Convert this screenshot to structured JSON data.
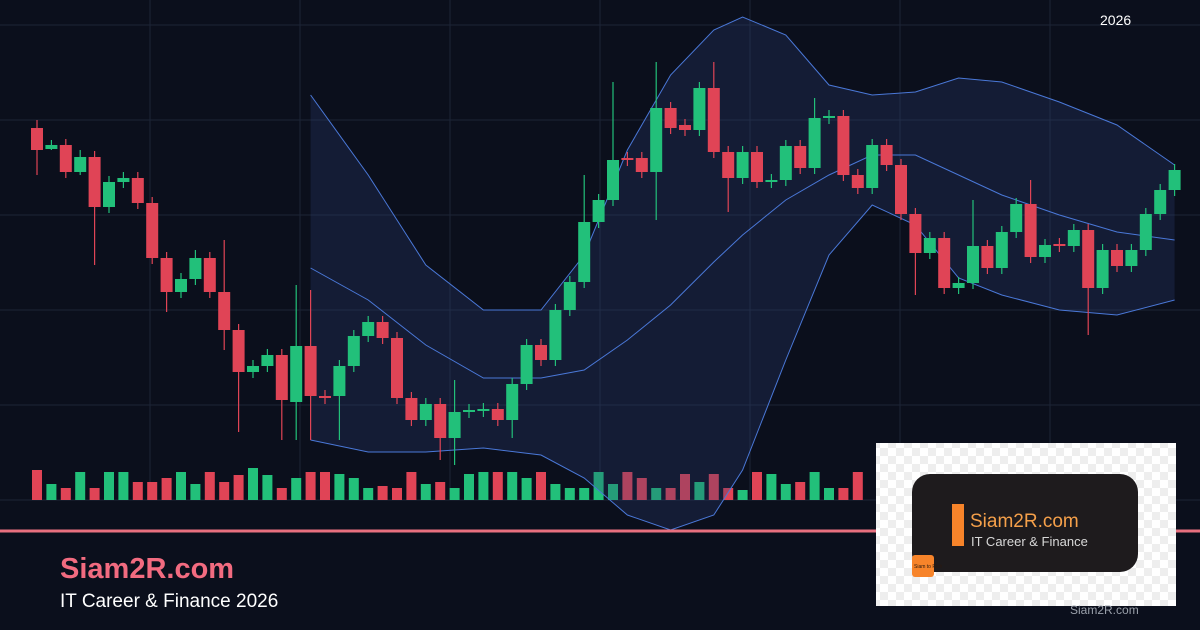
{
  "header": {
    "year": "2026"
  },
  "brand": {
    "title": "Siam2R.com",
    "subtitle": "IT Career & Finance 2026"
  },
  "logo": {
    "title": "Siam2R.com",
    "subtitle": "IT Career & Finance",
    "icon": "Siam to Rich"
  },
  "watermark": "Siam2R.com",
  "chart_data": {
    "type": "candlestick",
    "open": [
      372,
      351,
      355,
      328,
      343,
      293,
      318,
      322,
      297,
      242,
      208,
      221,
      242,
      208,
      170,
      128,
      134,
      145,
      98,
      154,
      104,
      104,
      134,
      164,
      178,
      162,
      102,
      80,
      96,
      62,
      88,
      89,
      91,
      80,
      116,
      155,
      140,
      190,
      218,
      278,
      300,
      342,
      342,
      328,
      392,
      375,
      370,
      412,
      348,
      322,
      348,
      318,
      320,
      354,
      332,
      382,
      384,
      325,
      312,
      355,
      335,
      286,
      247,
      262,
      212,
      217,
      254,
      232,
      268,
      296,
      243,
      256,
      254,
      270,
      212,
      250,
      234,
      250,
      286,
      310
    ],
    "high": [
      380,
      360,
      361,
      350,
      349,
      324,
      328,
      328,
      303,
      248,
      227,
      250,
      248,
      260,
      176,
      140,
      151,
      151,
      215,
      210,
      110,
      140,
      170,
      184,
      184,
      168,
      108,
      102,
      102,
      120,
      96,
      97,
      97,
      122,
      161,
      161,
      196,
      224,
      325,
      306,
      418,
      348,
      348,
      438,
      398,
      381,
      418,
      438,
      354,
      354,
      354,
      326,
      360,
      360,
      402,
      390,
      390,
      331,
      361,
      361,
      341,
      292,
      268,
      268,
      223,
      300,
      260,
      274,
      302,
      320,
      261,
      262,
      276,
      276,
      256,
      256,
      256,
      292,
      316,
      336
    ],
    "low": [
      325,
      350,
      322,
      325,
      235,
      287,
      312,
      291,
      236,
      188,
      202,
      215,
      202,
      150,
      68,
      122,
      128,
      60,
      60,
      60,
      96,
      60,
      128,
      158,
      156,
      96,
      74,
      74,
      40,
      35,
      82,
      83,
      74,
      62,
      110,
      134,
      134,
      184,
      212,
      272,
      294,
      334,
      322,
      280,
      366,
      364,
      364,
      342,
      288,
      316,
      312,
      312,
      314,
      326,
      326,
      376,
      319,
      306,
      306,
      329,
      280,
      205,
      241,
      206,
      206,
      211,
      226,
      226,
      262,
      237,
      237,
      248,
      248,
      165,
      206,
      228,
      228,
      244,
      280,
      304
    ],
    "close": [
      350,
      355,
      328,
      343,
      293,
      318,
      322,
      297,
      242,
      208,
      221,
      242,
      208,
      170,
      128,
      134,
      145,
      100,
      154,
      104,
      102,
      134,
      164,
      178,
      162,
      102,
      80,
      96,
      62,
      88,
      90,
      91,
      80,
      116,
      155,
      140,
      190,
      218,
      278,
      300,
      340,
      340,
      328,
      392,
      372,
      370,
      412,
      348,
      322,
      348,
      318,
      320,
      354,
      332,
      382,
      384,
      325,
      312,
      355,
      335,
      286,
      247,
      262,
      212,
      217,
      254,
      232,
      268,
      296,
      243,
      255,
      254,
      270,
      212,
      250,
      234,
      250,
      286,
      310,
      330
    ],
    "volume": [
      30,
      16,
      12,
      28,
      12,
      28,
      28,
      18,
      18,
      22,
      28,
      16,
      28,
      18,
      25,
      32,
      25,
      12,
      22,
      28,
      28,
      26,
      22,
      12,
      14,
      12,
      28,
      16,
      18,
      12,
      26,
      28,
      28,
      28,
      22,
      28,
      16,
      12,
      12,
      28,
      16,
      28,
      22,
      12,
      12,
      26,
      18,
      26,
      12,
      10,
      28,
      26,
      16,
      18,
      28,
      12,
      12,
      28,
      null,
      null,
      null,
      null,
      null,
      null,
      null,
      null,
      null,
      null,
      null,
      null,
      null,
      null,
      null,
      null,
      null,
      null,
      null,
      null,
      null,
      null
    ],
    "ylim": [
      -130,
      500
    ],
    "volume_lim": [
      0,
      50
    ],
    "up_color": "#22c07a",
    "down_color": "#e04456",
    "bands": {
      "color": "#4a78d8",
      "x": [
        19,
        23,
        27,
        31,
        35,
        38,
        41,
        44,
        47,
        49,
        52,
        55,
        58,
        61,
        64,
        67,
        71,
        75,
        79
      ],
      "upper": [
        405,
        325,
        235,
        190,
        190,
        245,
        350,
        425,
        470,
        483,
        465,
        415,
        405,
        408,
        422,
        418,
        398,
        375,
        335
      ],
      "middle": [
        232,
        200,
        155,
        122,
        122,
        130,
        160,
        195,
        238,
        265,
        300,
        325,
        345,
        345,
        325,
        305,
        285,
        268,
        260
      ],
      "lower": [
        60,
        48,
        48,
        52,
        45,
        22,
        -15,
        -30,
        -15,
        30,
        140,
        245,
        295,
        275,
        222,
        205,
        190,
        185,
        200
      ]
    }
  }
}
